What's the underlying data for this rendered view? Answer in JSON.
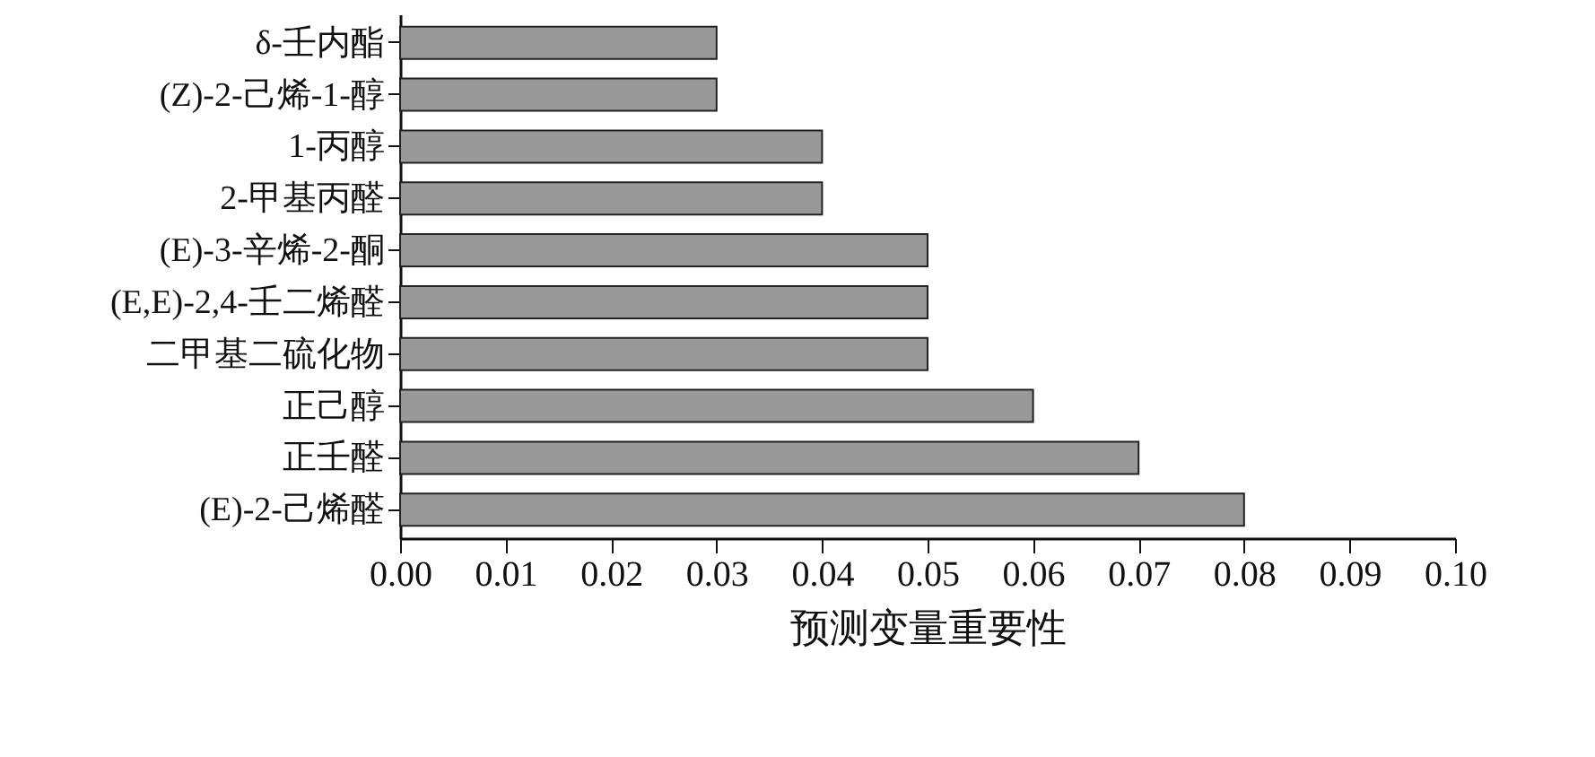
{
  "chart_data": {
    "type": "bar",
    "orientation": "horizontal",
    "xlabel": "预测变量重要性",
    "categories": [
      "δ-壬内酯",
      "(Z)-2-己烯-1-醇",
      "1-丙醇",
      "2-甲基丙醛",
      "(E)-3-辛烯-2-酮",
      "(E,E)-2,4-壬二烯醛",
      "二甲基二硫化物",
      "正己醇",
      "正壬醛",
      "(E)-2-己烯醛"
    ],
    "values": [
      0.03,
      0.03,
      0.04,
      0.04,
      0.05,
      0.05,
      0.05,
      0.06,
      0.07,
      0.08
    ],
    "color": "#999999",
    "xlim": [
      0,
      0.1
    ],
    "xticks": [
      {
        "value": 0,
        "label": "0.00"
      },
      {
        "value": 0.01,
        "label": "0.01"
      },
      {
        "value": 0.02,
        "label": "0.02"
      },
      {
        "value": 0.03,
        "label": "0.03"
      },
      {
        "value": 0.04,
        "label": "0.04"
      },
      {
        "value": 0.05,
        "label": "0.05"
      },
      {
        "value": 0.06,
        "label": "0.06"
      },
      {
        "value": 0.07,
        "label": "0.07"
      },
      {
        "value": 0.08,
        "label": "0.08"
      },
      {
        "value": 0.09,
        "label": "0.09"
      },
      {
        "value": 0.1,
        "label": "0.10"
      }
    ],
    "grid": false
  }
}
